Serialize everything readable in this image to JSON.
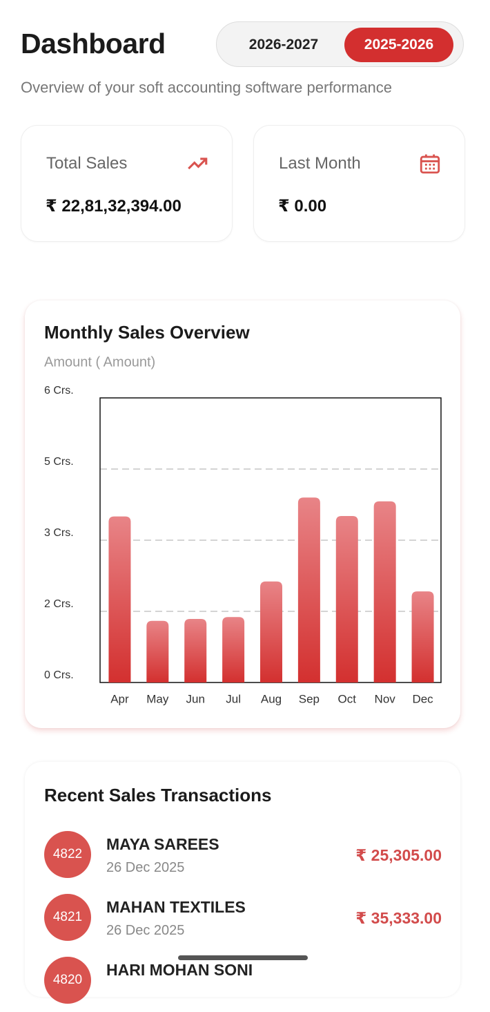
{
  "header": {
    "title": "Dashboard",
    "years": [
      "2026-2027",
      "2025-2026"
    ],
    "subtitle": "Overview of your soft accounting software performance"
  },
  "stats": [
    {
      "label": "Total Sales",
      "value": "₹ 22,81,32,394.00"
    },
    {
      "label": "Last Month",
      "value": "₹ 0.00"
    }
  ],
  "chart_data": {
    "type": "bar",
    "title": "Monthly Sales Overview",
    "subtitle": "Amount ( Amount)",
    "categories": [
      "Apr",
      "May",
      "Jun",
      "Jul",
      "Aug",
      "Sep",
      "Oct",
      "Nov",
      "Dec"
    ],
    "values": [
      3.5,
      1.3,
      1.34,
      1.38,
      2.13,
      3.9,
      3.51,
      3.82,
      1.92
    ],
    "color": "#d3302f",
    "ylim": [
      0,
      6
    ],
    "yticks": [
      {
        "value": 0,
        "label": "0 Crs."
      },
      {
        "value": 1.5,
        "label": "2 Crs."
      },
      {
        "value": 3,
        "label": "3 Crs."
      },
      {
        "value": 4.5,
        "label": "5 Crs."
      },
      {
        "value": 6,
        "label": "6 Crs."
      }
    ],
    "grid": true
  },
  "transactions": {
    "title": "Recent Sales Transactions",
    "items": [
      {
        "id": "4822",
        "name": "MAYA SAREES",
        "date": "26 Dec 2025",
        "amount": "₹ 25,305.00"
      },
      {
        "id": "4821",
        "name": "MAHAN TEXTILES",
        "date": "26 Dec 2025",
        "amount": "₹ 35,333.00"
      },
      {
        "id": "4820",
        "name": "HARI MOHAN SONI"
      }
    ]
  }
}
